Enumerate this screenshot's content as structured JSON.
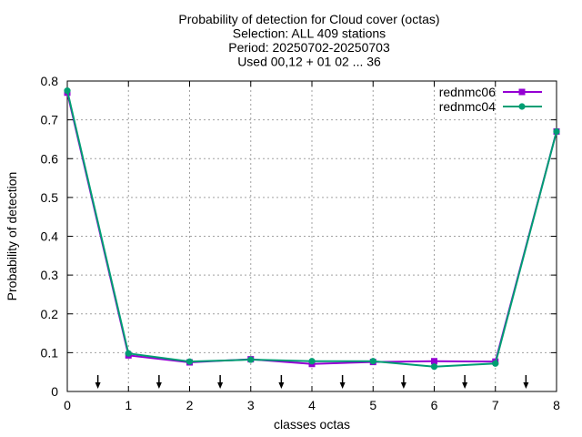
{
  "chart_data": {
    "type": "line",
    "title_lines": [
      "Probability of detection  for Cloud cover (octas)",
      "Selection: ALL    409 stations",
      "Period: 20250702-20250703",
      "Used 00,12 + 01 02 ... 36"
    ],
    "xlabel": "classes octas",
    "ylabel": "Probability of detection",
    "xlim": [
      0,
      8
    ],
    "ylim": [
      0,
      0.8
    ],
    "xticks": [
      0,
      1,
      2,
      3,
      4,
      5,
      6,
      7,
      8
    ],
    "yticks": [
      0,
      0.1,
      0.2,
      0.3,
      0.4,
      0.5,
      0.6,
      0.7,
      0.8
    ],
    "xtick_labels": [
      "0",
      "1",
      "2",
      "3",
      "4",
      "5",
      "6",
      "7",
      "8"
    ],
    "ytick_labels": [
      "0",
      "0.1",
      "0.2",
      "0.3",
      "0.4",
      "0.5",
      "0.6",
      "0.7",
      "0.8"
    ],
    "grid": true,
    "legend_position": "top-right",
    "x": [
      0,
      1,
      2,
      3,
      4,
      5,
      6,
      7,
      8
    ],
    "series": [
      {
        "name": "rednmc06",
        "color": "#9400d3",
        "marker": "square",
        "values": [
          0.77,
          0.093,
          0.075,
          0.083,
          0.071,
          0.076,
          0.078,
          0.077,
          0.67
        ]
      },
      {
        "name": "rednmc04",
        "color": "#009e73",
        "marker": "circle",
        "values": [
          0.775,
          0.098,
          0.077,
          0.082,
          0.078,
          0.078,
          0.064,
          0.072,
          0.67
        ]
      }
    ],
    "arrow_markers_x": [
      0.5,
      1.5,
      2.5,
      3.5,
      4.5,
      5.5,
      6.5,
      7.5
    ]
  }
}
